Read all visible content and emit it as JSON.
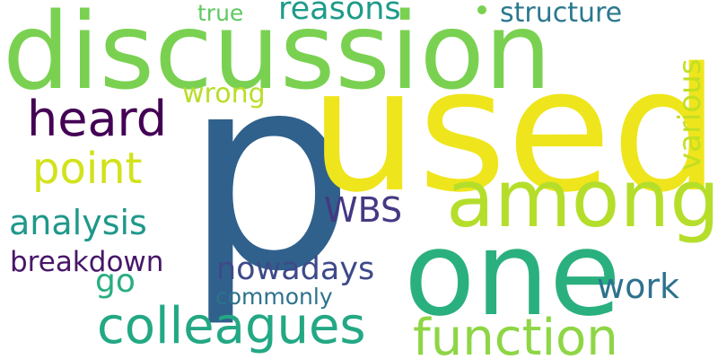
{
  "words": [
    {
      "id": "p",
      "text": "p",
      "color": "#30618c"
    },
    {
      "id": "used",
      "text": "used",
      "color": "#efe51c"
    },
    {
      "id": "discussion",
      "text": "discussion",
      "color": "#7ad151"
    },
    {
      "id": "one",
      "text": "one",
      "color": "#2ab07f"
    },
    {
      "id": "among",
      "text": "among",
      "color": "#b5de2b"
    },
    {
      "id": "colleagues",
      "text": "colleagues",
      "color": "#23a884"
    },
    {
      "id": "function",
      "text": "function",
      "color": "#8ed645"
    },
    {
      "id": "heard",
      "text": "heard",
      "color": "#440154"
    },
    {
      "id": "point",
      "text": "point",
      "color": "#d2e21b"
    },
    {
      "id": "analysis",
      "text": "analysis",
      "color": "#1f988b"
    },
    {
      "id": "breakdown",
      "text": "breakdown",
      "color": "#481668"
    },
    {
      "id": "nowadays",
      "text": "nowadays",
      "color": "#3e4a89"
    },
    {
      "id": "work",
      "text": "work",
      "color": "#2c728e"
    },
    {
      "id": "wbs",
      "text": "WBS",
      "color": "#443983"
    },
    {
      "id": "reasons",
      "text": "reasons",
      "color": "#1e9b8a"
    },
    {
      "id": "structure",
      "text": "structure",
      "color": "#2a788e"
    },
    {
      "id": "wrong",
      "text": "wrong",
      "color": "#b8de29"
    },
    {
      "id": "various",
      "text": "various",
      "color": "#c2df23"
    },
    {
      "id": "true",
      "text": "true",
      "color": "#5ec962"
    },
    {
      "id": "commonly",
      "text": "commonly",
      "color": "#2c728e"
    },
    {
      "id": "go",
      "text": "go",
      "color": "#28ae80"
    }
  ]
}
